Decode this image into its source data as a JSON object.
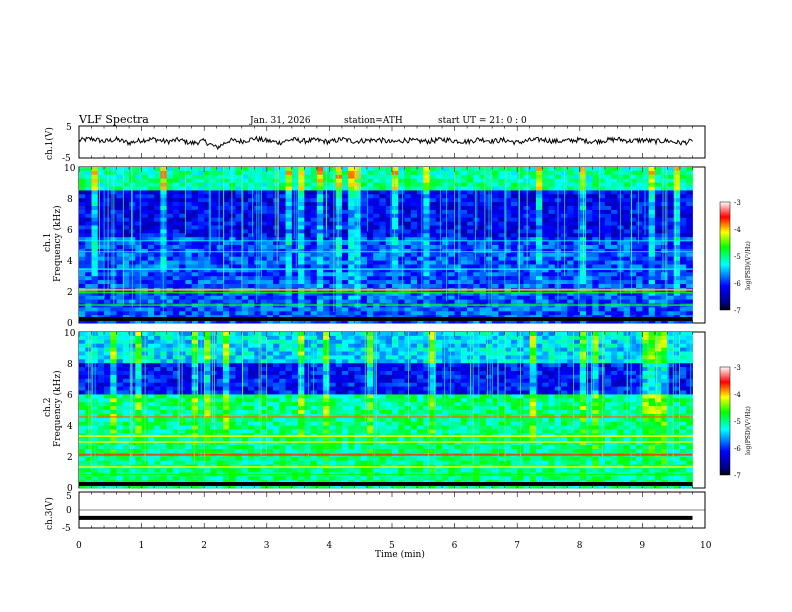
{
  "header": {
    "title": "VLF  Spectra",
    "date": "Jan. 31, 2026",
    "station": "station=ATH",
    "start": "start  UT  =    21: 0   : 0"
  },
  "colors": {
    "waveform": "#000000",
    "scale": [
      "#000000",
      "#00007f",
      "#0000ff",
      "#00ffff",
      "#00ff00",
      "#ffff00",
      "#ff0000",
      "#ffffff"
    ]
  },
  "chart_data": [
    {
      "type": "line",
      "name": "ch1-waveform",
      "ylabel": "ch.1(V)",
      "ylim": [
        -5,
        5
      ],
      "yticks": [
        "5",
        "-5"
      ],
      "x": [
        0,
        0.2,
        0.4,
        0.6,
        0.8,
        1.0,
        1.2,
        1.4,
        1.6,
        1.8,
        2.0,
        2.2,
        2.4,
        2.6,
        2.8,
        3.0,
        3.2,
        3.4,
        3.6,
        3.8,
        4.0,
        4.2,
        4.4,
        4.6,
        4.8,
        5.0,
        5.2,
        5.4,
        5.6,
        5.8,
        6.0,
        6.2,
        6.4,
        6.6,
        6.8,
        7.0,
        7.2,
        7.4,
        7.6,
        7.8,
        8.0,
        8.2,
        8.4,
        8.6,
        8.8,
        9.0,
        9.2,
        9.4,
        9.6,
        9.8
      ],
      "values": [
        0.5,
        1.0,
        0.2,
        0.8,
        -0.3,
        0.6,
        0.9,
        0.1,
        0.7,
        -0.4,
        0.3,
        -1.8,
        0.5,
        0.2,
        1.1,
        0.4,
        -0.2,
        0.8,
        0.3,
        0.6,
        0.0,
        0.9,
        0.2,
        0.5,
        0.7,
        -0.1,
        0.6,
        0.3,
        0.2,
        0.8,
        0.4,
        0.1,
        0.9,
        0.3,
        0.6,
        -0.2,
        0.5,
        0.8,
        0.2,
        0.4,
        0.7,
        0.1,
        0.5,
        0.9,
        0.3,
        0.6,
        0.2,
        0.4,
        -0.3,
        0.2
      ]
    },
    {
      "type": "heatmap",
      "name": "ch1-spectrogram",
      "ylabel": "ch.1",
      "ylabel2": "Frequency  (kHz)",
      "ylim": [
        0,
        10
      ],
      "yticks": [
        "10",
        "8",
        "6",
        "4",
        "2",
        "0"
      ],
      "xlim": [
        0,
        9.8
      ],
      "colorbar": {
        "label": "log(PSD)(V²/Hz)",
        "range": [
          -7,
          -3
        ],
        "ticks": [
          "-3",
          "-4",
          "-5",
          "-6",
          "-7"
        ]
      }
    },
    {
      "type": "heatmap",
      "name": "ch2-spectrogram",
      "ylabel": "ch.2",
      "ylabel2": "Frequency  (kHz)",
      "ylim": [
        0,
        10
      ],
      "yticks": [
        "10",
        "8",
        "6",
        "4",
        "2",
        "0"
      ],
      "xlim": [
        0,
        9.8
      ],
      "colorbar": {
        "label": "log(PSD)(V²/Hz)",
        "range": [
          -7,
          -3
        ],
        "ticks": [
          "-3",
          "-4",
          "-5",
          "-6",
          "-7"
        ]
      }
    },
    {
      "type": "line",
      "name": "ch3-waveform",
      "ylabel": "ch.3(V)",
      "ylim": [
        -5,
        5
      ],
      "yticks": [
        "5",
        "0",
        "-5"
      ],
      "x": [
        0,
        9.8
      ],
      "values": [
        -2.2,
        -2.2
      ]
    }
  ],
  "xaxis": {
    "label": "Time  (min)",
    "range": [
      0,
      10
    ],
    "ticks": [
      "0",
      "1",
      "2",
      "3",
      "4",
      "5",
      "6",
      "7",
      "8",
      "9",
      "10"
    ]
  }
}
